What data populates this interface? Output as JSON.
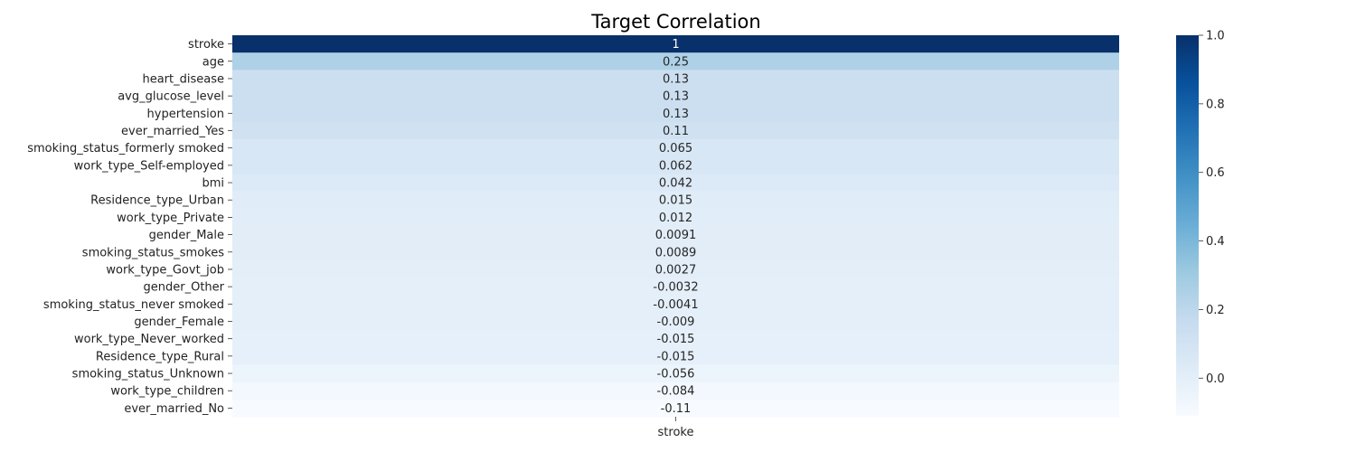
{
  "chart_data": {
    "type": "heatmap",
    "title": "Target Correlation",
    "columns": [
      "stroke"
    ],
    "rows": [
      {
        "label": "stroke",
        "value": 1.0,
        "text": "1"
      },
      {
        "label": "age",
        "value": 0.25,
        "text": "0.25"
      },
      {
        "label": "heart_disease",
        "value": 0.13,
        "text": "0.13"
      },
      {
        "label": "avg_glucose_level",
        "value": 0.13,
        "text": "0.13"
      },
      {
        "label": "hypertension",
        "value": 0.13,
        "text": "0.13"
      },
      {
        "label": "ever_married_Yes",
        "value": 0.11,
        "text": "0.11"
      },
      {
        "label": "smoking_status_formerly smoked",
        "value": 0.065,
        "text": "0.065"
      },
      {
        "label": "work_type_Self-employed",
        "value": 0.062,
        "text": "0.062"
      },
      {
        "label": "bmi",
        "value": 0.042,
        "text": "0.042"
      },
      {
        "label": "Residence_type_Urban",
        "value": 0.015,
        "text": "0.015"
      },
      {
        "label": "work_type_Private",
        "value": 0.012,
        "text": "0.012"
      },
      {
        "label": "gender_Male",
        "value": 0.0091,
        "text": "0.0091"
      },
      {
        "label": "smoking_status_smokes",
        "value": 0.0089,
        "text": "0.0089"
      },
      {
        "label": "work_type_Govt_job",
        "value": 0.0027,
        "text": "0.0027"
      },
      {
        "label": "gender_Other",
        "value": -0.0032,
        "text": "-0.0032"
      },
      {
        "label": "smoking_status_never smoked",
        "value": -0.0041,
        "text": "-0.0041"
      },
      {
        "label": "gender_Female",
        "value": -0.009,
        "text": "-0.009"
      },
      {
        "label": "work_type_Never_worked",
        "value": -0.015,
        "text": "-0.015"
      },
      {
        "label": "Residence_type_Rural",
        "value": -0.015,
        "text": "-0.015"
      },
      {
        "label": "smoking_status_Unknown",
        "value": -0.056,
        "text": "-0.056"
      },
      {
        "label": "work_type_children",
        "value": -0.084,
        "text": "-0.084"
      },
      {
        "label": "ever_married_No",
        "value": -0.11,
        "text": "-0.11"
      }
    ],
    "colormap": "Blues",
    "vmin": -0.11,
    "vmax": 1.0,
    "colorbar_ticks": [
      "0.0",
      "0.2",
      "0.4",
      "0.6",
      "0.8",
      "1.0"
    ],
    "colorbar_tick_values": [
      0.0,
      0.2,
      0.4,
      0.6,
      0.8,
      1.0
    ]
  }
}
